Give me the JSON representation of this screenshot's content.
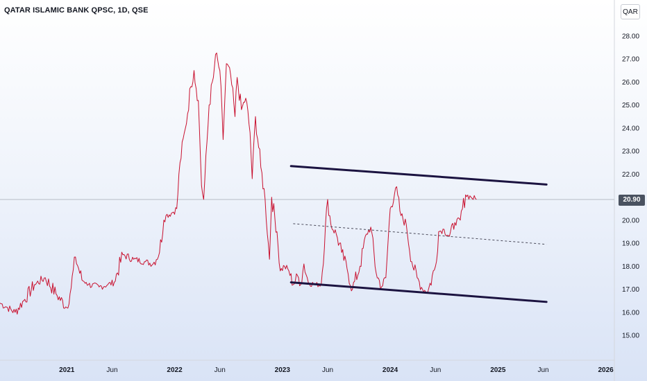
{
  "title": "QATAR ISLAMIC BANK QPSC, 1D, QSE",
  "currency": "QAR",
  "last_price_label": "20.90",
  "colors": {
    "series": "#c8102e",
    "channel": "#1b1340",
    "midline": "#4a4a5a",
    "price_line": "#b8bcc6"
  },
  "chart_data": {
    "type": "line",
    "title": "QATAR ISLAMIC BANK QPSC, 1D, QSE",
    "ylim": [
      14.3,
      28.7
    ],
    "y_ticks": [
      15,
      16,
      17,
      18,
      19,
      20,
      21,
      22,
      23,
      24,
      25,
      26,
      27,
      28
    ],
    "y_tick_labels": [
      "15.00",
      "16.00",
      "17.00",
      "18.00",
      "19.00",
      "20.00",
      "21.00",
      "22.00",
      "23.00",
      "24.00",
      "25.00",
      "26.00",
      "27.00",
      "28.00"
    ],
    "xlim": [
      2020.38,
      2026.08
    ],
    "x_ticks": [
      {
        "t": 2021.0,
        "label": "2021",
        "bold": true
      },
      {
        "t": 2021.42,
        "label": "Jun",
        "bold": false
      },
      {
        "t": 2022.0,
        "label": "2022",
        "bold": true
      },
      {
        "t": 2022.42,
        "label": "Jun",
        "bold": false
      },
      {
        "t": 2023.0,
        "label": "2023",
        "bold": true
      },
      {
        "t": 2023.42,
        "label": "Jun",
        "bold": false
      },
      {
        "t": 2024.0,
        "label": "2024",
        "bold": true
      },
      {
        "t": 2024.42,
        "label": "Jun",
        "bold": false
      },
      {
        "t": 2025.0,
        "label": "2025",
        "bold": true
      },
      {
        "t": 2025.42,
        "label": "Jun",
        "bold": false
      },
      {
        "t": 2026.0,
        "label": "2026",
        "bold": true
      }
    ],
    "last_price": 20.9,
    "series": [
      {
        "x": [
          2020.38,
          2020.45,
          2020.52,
          2020.6,
          2020.7,
          2020.8,
          2020.9,
          2021.0,
          2021.03,
          2021.08,
          2021.14,
          2021.18,
          2021.2,
          2021.3,
          2021.38,
          2021.44,
          2021.52,
          2021.62,
          2021.72,
          2021.8,
          2021.86,
          2021.9,
          2021.92,
          2021.97,
          2022.02,
          2022.05,
          2022.1,
          2022.15,
          2022.18,
          2022.22,
          2022.25,
          2022.27,
          2022.32,
          2022.36,
          2022.38,
          2022.42,
          2022.45,
          2022.48,
          2022.52,
          2022.56,
          2022.58,
          2022.62,
          2022.66,
          2022.7,
          2022.72,
          2022.75,
          2022.8,
          2022.84,
          2022.88,
          2022.9,
          2022.95,
          2022.98,
          2023.02,
          2023.06,
          2023.1,
          2023.14,
          2023.17,
          2023.2,
          2023.24,
          2023.3,
          2023.36,
          2023.42,
          2023.45,
          2023.5,
          2023.55,
          2023.6,
          2023.65,
          2023.72,
          2023.78,
          2023.82,
          2023.87,
          2023.92,
          2023.96,
          2024.0,
          2024.05,
          2024.1,
          2024.15,
          2024.2,
          2024.25,
          2024.3,
          2024.35,
          2024.42,
          2024.45,
          2024.5,
          2024.55,
          2024.6,
          2024.65,
          2024.7,
          2024.75,
          2024.8
        ],
        "y": [
          16.4,
          16.2,
          16.0,
          16.5,
          17.2,
          17.5,
          16.8,
          16.2,
          16.8,
          18.4,
          17.4,
          17.3,
          17.2,
          17.1,
          17.2,
          17.3,
          18.5,
          18.3,
          18.2,
          18.1,
          18.6,
          20.0,
          20.2,
          20.3,
          20.5,
          22.5,
          24.0,
          25.8,
          26.5,
          25.2,
          21.5,
          20.9,
          25.0,
          26.2,
          27.2,
          26.5,
          23.5,
          26.8,
          26.3,
          24.5,
          26.2,
          24.8,
          25.3,
          23.8,
          21.8,
          24.5,
          22.3,
          20.9,
          18.3,
          21.0,
          19.5,
          17.8,
          18.0,
          17.8,
          17.2,
          17.6,
          17.2,
          18.1,
          17.3,
          17.2,
          17.2,
          20.9,
          19.8,
          19.4,
          18.6,
          17.9,
          17.0,
          18.0,
          19.4,
          19.7,
          17.7,
          17.1,
          17.5,
          20.5,
          21.4,
          20.2,
          19.8,
          18.2,
          17.5,
          17.0,
          16.9,
          18.0,
          19.5,
          19.6,
          19.3,
          19.9,
          20.0,
          21.1,
          21.0,
          20.9
        ]
      }
    ],
    "channel": {
      "upper": [
        [
          2023.08,
          22.35
        ],
        [
          2025.45,
          21.55
        ]
      ],
      "mid": [
        [
          2023.1,
          19.85
        ],
        [
          2025.45,
          18.95
        ]
      ],
      "lower": [
        [
          2023.08,
          17.3
        ],
        [
          2025.45,
          16.45
        ]
      ]
    }
  }
}
